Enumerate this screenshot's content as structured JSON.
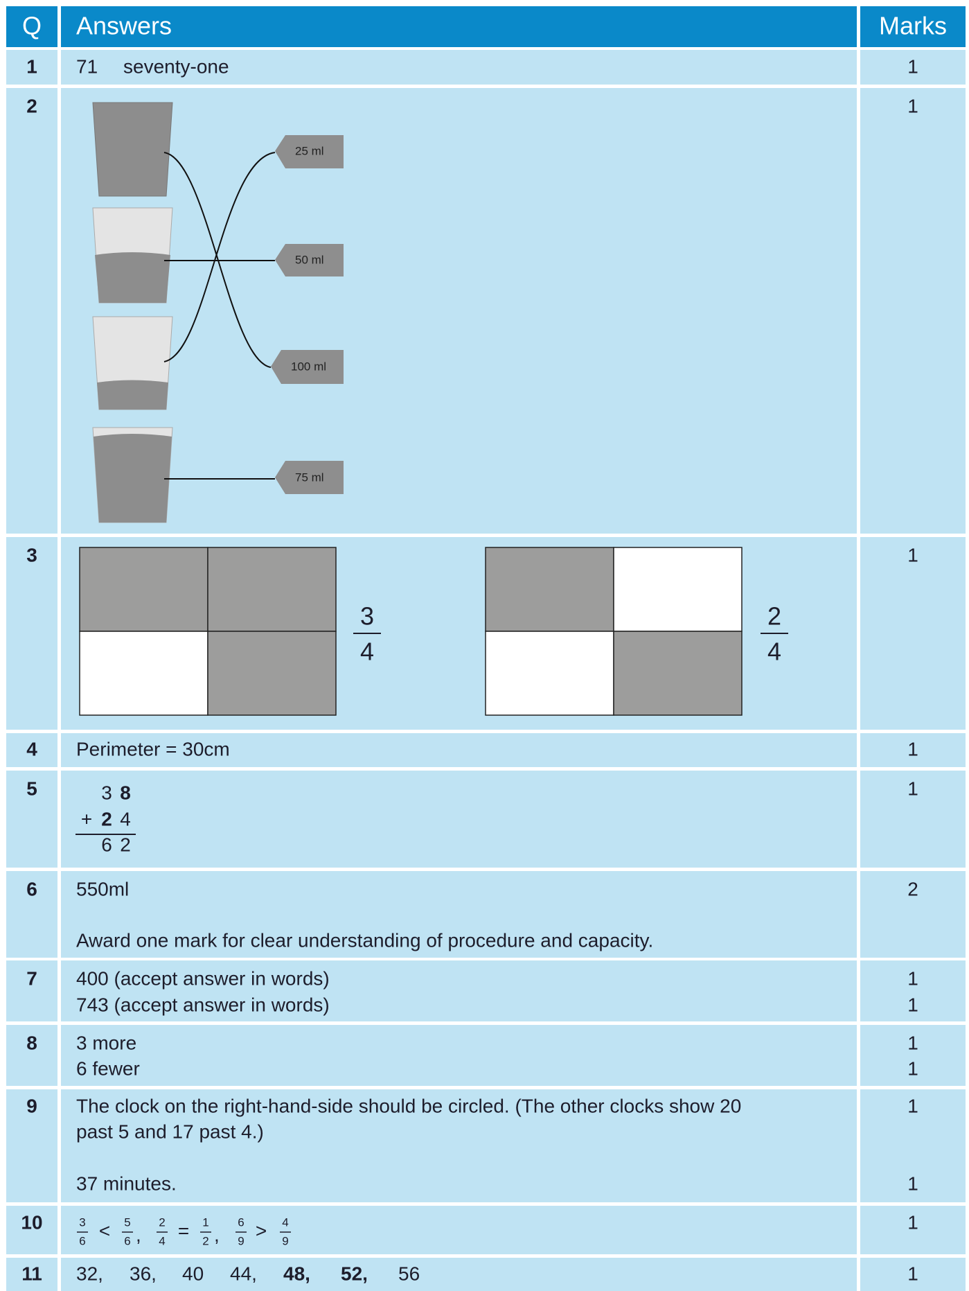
{
  "header": {
    "q": "Q",
    "answers": "Answers",
    "marks": "Marks"
  },
  "rows": [
    {
      "q": "1",
      "answer": [
        "71",
        "seventy-one"
      ],
      "marks": [
        "1"
      ]
    },
    {
      "q": "2",
      "labels": [
        "25 ml",
        "50 ml",
        "100 ml",
        "75 ml"
      ],
      "marks": [
        "1"
      ]
    },
    {
      "q": "3",
      "fractions": [
        [
          "3",
          "4"
        ],
        [
          "2",
          "4"
        ]
      ],
      "marks": [
        "1"
      ]
    },
    {
      "q": "4",
      "answer": [
        "Perimeter = 30cm"
      ],
      "marks": [
        "1"
      ]
    },
    {
      "q": "5",
      "sum": [
        [
          "3",
          "8"
        ],
        [
          "+",
          "2",
          "4"
        ],
        [
          "6",
          "2"
        ]
      ],
      "marks": [
        "1"
      ]
    },
    {
      "q": "6",
      "answer": [
        "550ml",
        "Award one mark for clear understanding of procedure and capacity."
      ],
      "marks": [
        "2"
      ]
    },
    {
      "q": "7",
      "answer": [
        "400 (accept answer in words)",
        "743 (accept answer in words)"
      ],
      "marks": [
        "1",
        "1"
      ]
    },
    {
      "q": "8",
      "answer": [
        "3 more",
        "6 fewer"
      ],
      "marks": [
        "1",
        "1"
      ]
    },
    {
      "q": "9",
      "answer": [
        "The clock on the right-hand-side should be circled. (The other clocks show 20",
        "past 5 and 17 past 4.)",
        "37 minutes."
      ],
      "marks": [
        "1",
        "1"
      ]
    },
    {
      "q": "10",
      "comparisons": [
        {
          "left": [
            "3",
            "6"
          ],
          "sign": "<",
          "right": [
            "5",
            "6"
          ],
          "sep": ","
        },
        {
          "left": [
            "2",
            "4"
          ],
          "sign": "=",
          "right": [
            "1",
            "2"
          ],
          "sep": ","
        },
        {
          "left": [
            "6",
            "9"
          ],
          "sign": ">",
          "right": [
            "4",
            "9"
          ]
        }
      ],
      "marks": [
        "1"
      ]
    },
    {
      "q": "11",
      "sequence": [
        "32,",
        "36,",
        "40",
        "44,",
        "48,",
        "52,",
        "56"
      ],
      "marks": [
        "1"
      ]
    }
  ]
}
